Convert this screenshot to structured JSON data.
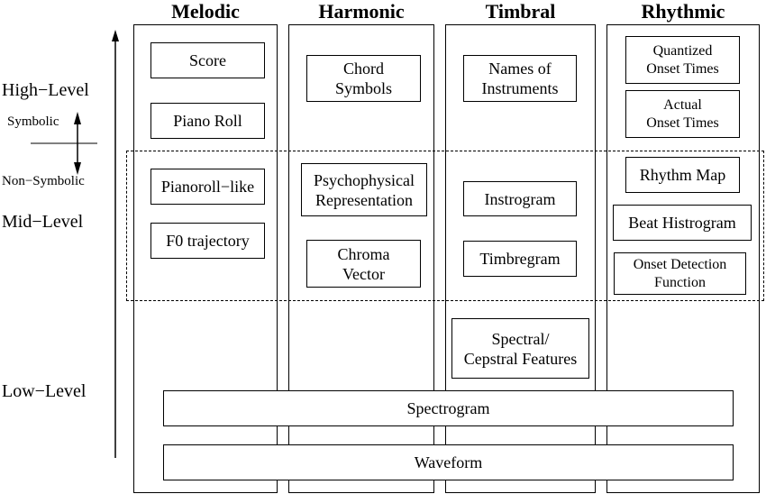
{
  "columns": [
    {
      "title": "Melodic"
    },
    {
      "title": "Harmonic"
    },
    {
      "title": "Timbral"
    },
    {
      "title": "Rhythmic"
    }
  ],
  "levels": {
    "high": "High−Level",
    "mid": "Mid−Level",
    "low": "Low−Level",
    "symbolic": "Symbolic",
    "non_symbolic": "Non−Symbolic"
  },
  "melodic": {
    "score": "Score",
    "piano_roll": "Piano Roll",
    "pianoroll_like": "Pianoroll−like",
    "f0_trajectory": "F0 trajectory"
  },
  "harmonic": {
    "chord_symbols": "Chord\nSymbols",
    "psychophysical": "Psychophysical\nRepresentation",
    "chroma_vector": "Chroma\nVector"
  },
  "timbral": {
    "names_of_instruments": "Names of\nInstruments",
    "instrogram": "Instrogram",
    "timbregram": "Timbregram",
    "spectral_cepstral": "Spectral/\nCepstral Features"
  },
  "rhythmic": {
    "quantized_onset": "Quantized\nOnset Times",
    "actual_onset": "Actual\nOnset Times",
    "rhythm_map": "Rhythm Map",
    "beat_histrogram": "Beat Histrogram",
    "onset_detection": "Onset Detection\nFunction"
  },
  "shared": {
    "spectrogram": "Spectrogram",
    "waveform": "Waveform"
  }
}
